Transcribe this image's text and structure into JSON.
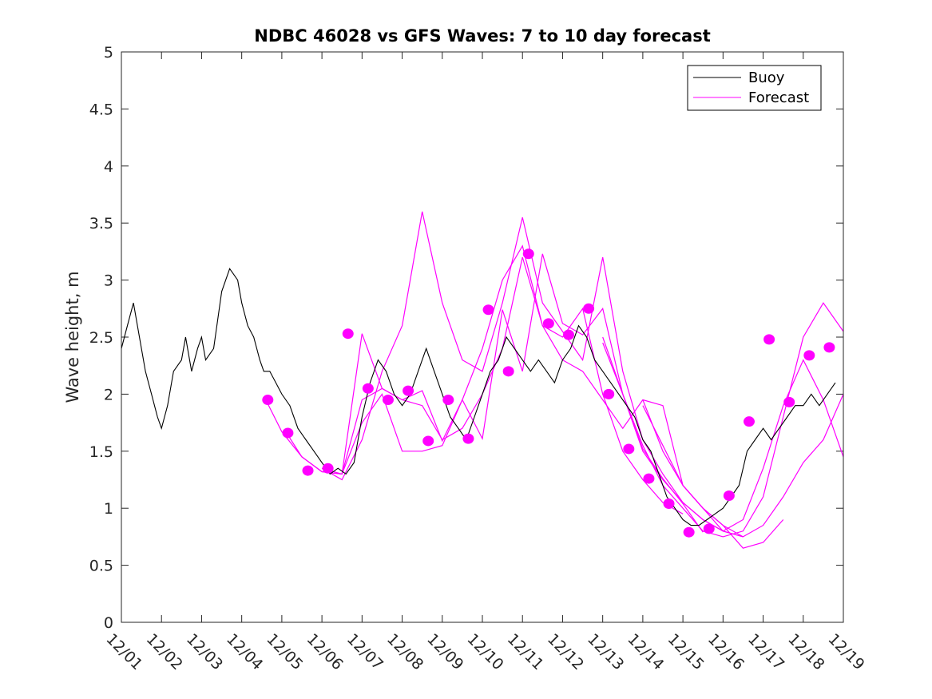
{
  "chart_data": {
    "type": "line",
    "title": "NDBC 46028 vs GFS Waves: 7 to 10 day forecast",
    "xlabel": "",
    "ylabel": "Wave height, m",
    "xlim": [
      0,
      18
    ],
    "ylim": [
      0,
      5
    ],
    "x_ticks": [
      0,
      1,
      2,
      3,
      4,
      5,
      6,
      7,
      8,
      9,
      10,
      11,
      12,
      13,
      14,
      15,
      16,
      17,
      18
    ],
    "x_tick_labels": [
      "12/01",
      "12/02",
      "12/03",
      "12/04",
      "12/05",
      "12/06",
      "12/07",
      "12/08",
      "12/09",
      "12/10",
      "12/11",
      "12/12",
      "12/13",
      "12/14",
      "12/15",
      "12/16",
      "12/17",
      "12/18",
      "12/19"
    ],
    "y_ticks": [
      0,
      0.5,
      1,
      1.5,
      2,
      2.5,
      3,
      3.5,
      4,
      4.5,
      5
    ],
    "y_tick_labels": [
      "0",
      "0.5",
      "1",
      "1.5",
      "2",
      "2.5",
      "3",
      "3.5",
      "4",
      "4.5",
      "5"
    ],
    "legend": {
      "position": "top-right",
      "entries": [
        {
          "label": "Buoy",
          "color": "#000000"
        },
        {
          "label": "Forecast",
          "color": "#ff00ff"
        }
      ]
    },
    "colors": {
      "buoy": "#000000",
      "forecast": "#ff00ff",
      "axes": "#262626"
    },
    "series": [
      {
        "name": "Buoy",
        "x": [
          0,
          0.15,
          0.3,
          0.45,
          0.6,
          0.75,
          0.9,
          1.0,
          1.15,
          1.3,
          1.5,
          1.6,
          1.75,
          1.9,
          2.0,
          2.1,
          2.3,
          2.5,
          2.7,
          2.9,
          3.0,
          3.15,
          3.3,
          3.45,
          3.55,
          3.7,
          3.85,
          4.0,
          4.2,
          4.4,
          4.6,
          4.8,
          5.0,
          5.2,
          5.4,
          5.6,
          5.8,
          6.0,
          6.2,
          6.4,
          6.6,
          6.8,
          7.0,
          7.2,
          7.4,
          7.6,
          7.8,
          8.0,
          8.2,
          8.4,
          8.6,
          8.8,
          9.0,
          9.2,
          9.4,
          9.6,
          9.8,
          10.0,
          10.2,
          10.4,
          10.6,
          10.8,
          11.0,
          11.2,
          11.4,
          11.6,
          11.8,
          12.0,
          12.2,
          12.4,
          12.6,
          12.8,
          13.0,
          13.2,
          13.4,
          13.6,
          13.8,
          14.0,
          14.2,
          14.4,
          14.6,
          14.8,
          15.0,
          15.2,
          15.4,
          15.6,
          15.8,
          16.0,
          16.2,
          16.4,
          16.6,
          16.8,
          17.0,
          17.2,
          17.4,
          17.6,
          17.8
        ],
        "y": [
          2.4,
          2.6,
          2.8,
          2.5,
          2.2,
          2.0,
          1.8,
          1.7,
          1.9,
          2.2,
          2.3,
          2.5,
          2.2,
          2.4,
          2.5,
          2.3,
          2.4,
          2.9,
          3.1,
          3.0,
          2.8,
          2.6,
          2.5,
          2.3,
          2.2,
          2.2,
          2.1,
          2.0,
          1.9,
          1.7,
          1.6,
          1.5,
          1.4,
          1.3,
          1.35,
          1.3,
          1.4,
          1.8,
          2.1,
          2.3,
          2.2,
          2.0,
          1.9,
          2.0,
          2.2,
          2.4,
          2.2,
          2.0,
          1.8,
          1.7,
          1.6,
          1.8,
          2.0,
          2.2,
          2.3,
          2.5,
          2.4,
          2.3,
          2.2,
          2.3,
          2.2,
          2.1,
          2.3,
          2.4,
          2.6,
          2.5,
          2.3,
          2.2,
          2.1,
          2.0,
          1.9,
          1.8,
          1.6,
          1.5,
          1.3,
          1.1,
          1.0,
          0.9,
          0.85,
          0.85,
          0.9,
          0.95,
          1.0,
          1.1,
          1.2,
          1.5,
          1.6,
          1.7,
          1.6,
          1.7,
          1.8,
          1.9,
          1.9,
          2.0,
          1.9,
          2.0,
          2.1
        ]
      },
      {
        "name": "Forecast",
        "runs": [
          {
            "x": [
              3.6,
              4.0,
              4.5,
              5.0,
              5.5,
              6.0,
              6.5,
              7.0,
              7.5,
              8.0,
              8.5,
              9.0,
              9.5,
              10.0,
              10.5,
              11.0,
              11.5,
              12.0,
              12.5,
              13.0,
              13.5,
              14.0
            ],
            "y": [
              1.95,
              1.67,
              1.45,
              1.32,
              1.3,
              1.95,
              2.05,
              1.95,
              1.9,
              1.6,
              1.7,
              2.0,
              2.4,
              3.2,
              2.6,
              2.5,
              2.75,
              2.0,
              1.5,
              1.25,
              1.05,
              0.95
            ]
          },
          {
            "x": [
              4.1,
              4.5,
              5.0,
              5.5,
              6.0,
              6.5,
              7.0,
              7.5,
              8.0,
              8.5,
              9.0,
              9.5,
              10.0,
              10.5,
              11.0,
              11.5,
              12.0,
              12.5,
              13.0,
              13.5,
              14.0,
              14.5
            ],
            "y": [
              1.67,
              1.45,
              1.32,
              1.3,
              2.53,
              2.05,
              1.95,
              2.03,
              1.59,
              1.95,
              1.61,
              2.74,
              2.2,
              3.23,
              2.62,
              2.52,
              2.75,
              2.0,
              1.52,
              1.26,
              1.04,
              0.79
            ]
          },
          {
            "x": [
              5.0,
              5.5,
              6.0,
              6.5,
              7.0,
              7.5,
              8.0,
              8.5,
              9.0,
              9.5,
              10.0,
              10.5,
              11.0,
              11.5,
              12.0,
              12.5,
              13.0,
              13.5,
              14.0,
              14.5,
              15.0,
              15.5
            ],
            "y": [
              1.35,
              1.25,
              1.6,
              2.2,
              2.6,
              3.6,
              2.8,
              2.3,
              2.2,
              2.8,
              3.55,
              2.8,
              2.55,
              2.3,
              3.2,
              2.2,
              1.6,
              1.3,
              1.05,
              0.9,
              0.8,
              0.75
            ]
          },
          {
            "x": [
              5.0,
              5.5,
              6.0,
              6.5,
              7.0,
              7.5,
              8.0,
              8.5,
              9.0,
              9.5,
              10.0,
              10.5,
              11.0,
              11.5,
              12.0,
              12.5,
              13.0,
              13.5,
              14.0,
              14.5,
              15.0,
              15.5
            ],
            "y": [
              1.35,
              1.3,
              1.75,
              2.0,
              1.5,
              1.5,
              1.55,
              1.95,
              2.4,
              3.0,
              3.3,
              2.6,
              2.3,
              2.2,
              1.95,
              1.7,
              1.95,
              1.9,
              1.2,
              1.0,
              0.85,
              0.75
            ]
          },
          {
            "x": [
              12.0,
              12.5,
              13.0,
              13.5,
              14.0,
              14.5,
              15.0,
              15.5,
              16.0,
              16.5,
              17.0,
              17.5,
              18.0
            ],
            "y": [
              2.5,
              2.0,
              1.55,
              1.2,
              1.0,
              0.8,
              0.75,
              0.8,
              1.1,
              1.8,
              2.5,
              2.8,
              2.55
            ]
          },
          {
            "x": [
              12.0,
              12.5,
              13.0,
              13.5,
              14.0,
              14.5,
              15.0,
              15.5,
              16.0,
              16.5,
              17.0,
              17.5,
              18.0
            ],
            "y": [
              2.45,
              2.0,
              1.5,
              1.25,
              1.05,
              0.9,
              0.8,
              0.9,
              1.35,
              1.9,
              2.3,
              1.95,
              1.45
            ]
          },
          {
            "x": [
              13.0,
              13.5,
              14.0,
              14.5,
              15.0,
              15.5,
              16.0,
              16.5,
              17.0,
              17.5,
              18.0
            ],
            "y": [
              1.95,
              1.5,
              1.2,
              1.0,
              0.8,
              0.75,
              0.85,
              1.1,
              1.4,
              1.6,
              2.0
            ]
          },
          {
            "x": [
              13.0,
              13.5,
              14.0,
              14.5,
              15.0,
              15.5,
              16.0,
              16.5
            ],
            "y": [
              1.9,
              1.55,
              1.2,
              1.0,
              0.85,
              0.65,
              0.7,
              0.9
            ]
          }
        ]
      },
      {
        "name": "Forecast markers",
        "x": [
          3.65,
          4.15,
          4.65,
          5.15,
          5.65,
          6.15,
          6.65,
          7.15,
          7.65,
          8.15,
          8.65,
          9.15,
          9.65,
          10.15,
          10.65,
          11.15,
          11.65,
          12.15,
          12.65,
          13.15,
          13.65,
          14.15,
          14.65,
          15.15,
          15.65,
          16.15,
          16.65,
          17.15,
          17.65
        ],
        "y": [
          1.95,
          1.66,
          1.33,
          1.35,
          2.53,
          2.05,
          1.95,
          2.03,
          1.59,
          1.95,
          1.61,
          2.74,
          2.2,
          3.23,
          2.62,
          2.52,
          2.75,
          2.0,
          1.52,
          1.26,
          1.04,
          0.79,
          0.82,
          1.11,
          1.76,
          2.48,
          1.93,
          2.34,
          2.41
        ]
      }
    ]
  }
}
